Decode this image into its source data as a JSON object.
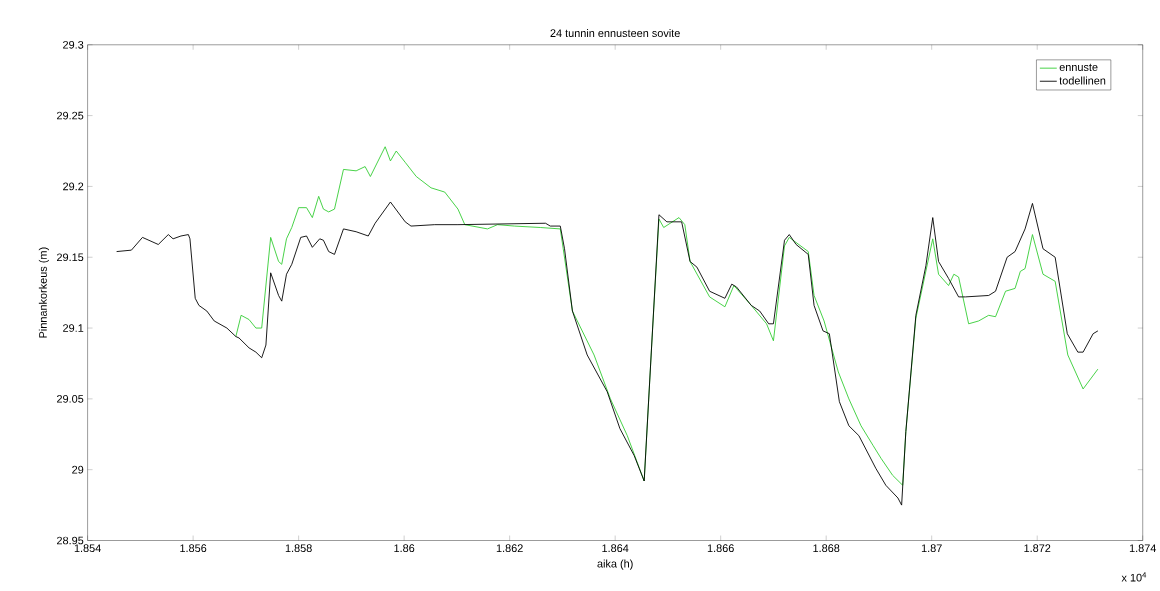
{
  "chart_data": {
    "type": "line",
    "title": "24 tunnin ennusteen sovite",
    "xlabel": "aika (h)",
    "ylabel": "Pinnankorkeus (m)",
    "xlim": [
      1.854,
      1.874
    ],
    "ylim": [
      28.95,
      29.3
    ],
    "xticks": [
      1.854,
      1.856,
      1.858,
      1.86,
      1.862,
      1.864,
      1.866,
      1.868,
      1.87,
      1.872,
      1.874
    ],
    "yticks": [
      28.95,
      29,
      29.05,
      29.1,
      29.15,
      29.2,
      29.25,
      29.3
    ],
    "legend": "top right",
    "annotations": [
      "x 10$^{4}$"
    ],
    "series": [
      {
        "name": "ennuste",
        "color": "#33cc33",
        "x": [
          1.85681,
          1.85691,
          1.85706,
          1.85719,
          1.8573,
          1.85747,
          1.85762,
          1.85768,
          1.85777,
          1.85787,
          1.858,
          1.85815,
          1.85826,
          1.85838,
          1.85847,
          1.85857,
          1.85868,
          1.85885,
          1.85909,
          1.85926,
          1.85936,
          1.85964,
          1.85974,
          1.85985,
          1.86002,
          1.86023,
          1.86051,
          1.86077,
          1.86102,
          1.86115,
          1.86158,
          1.86177,
          1.86209,
          1.86258,
          1.86296,
          1.86319,
          1.8636,
          1.86391,
          1.86423,
          1.86455,
          1.8647,
          1.86483,
          1.86492,
          1.86521,
          1.86532,
          1.86542,
          1.86579,
          1.86608,
          1.86625,
          1.86658,
          1.86687,
          1.867,
          1.86721,
          1.8673,
          1.86766,
          1.86777,
          1.86796,
          1.86823,
          1.86843,
          1.86866,
          1.86889,
          1.86904,
          1.86926,
          1.86945,
          1.86951,
          1.8697,
          1.87002,
          1.87013,
          1.87032,
          1.87042,
          1.87051,
          1.8707,
          1.87089,
          1.87108,
          1.87121,
          1.8714,
          1.87158,
          1.87168,
          1.87177,
          1.87191,
          1.87211,
          1.87234,
          1.87258,
          1.87287,
          1.87315
        ],
        "values": [
          29.094,
          29.109,
          29.106,
          29.1,
          29.1,
          29.164,
          29.147,
          29.145,
          29.163,
          29.171,
          29.185,
          29.185,
          29.178,
          29.193,
          29.184,
          29.182,
          29.184,
          29.212,
          29.211,
          29.214,
          29.207,
          29.228,
          29.218,
          29.225,
          29.217,
          29.207,
          29.199,
          29.196,
          29.184,
          29.173,
          29.17,
          29.173,
          29.172,
          29.171,
          29.17,
          29.112,
          29.081,
          29.05,
          29.024,
          28.992,
          29.093,
          29.177,
          29.171,
          29.178,
          29.173,
          29.147,
          29.122,
          29.115,
          29.13,
          29.116,
          29.103,
          29.091,
          29.158,
          29.164,
          29.154,
          29.123,
          29.105,
          29.069,
          29.05,
          29.031,
          29.017,
          29.008,
          28.996,
          28.989,
          29.027,
          29.107,
          29.163,
          29.138,
          29.13,
          29.138,
          29.136,
          29.103,
          29.105,
          29.109,
          29.108,
          29.126,
          29.128,
          29.14,
          29.142,
          29.166,
          29.138,
          29.133,
          29.081,
          29.057,
          29.071
        ]
      },
      {
        "name": "todellinen",
        "color": "#000000",
        "x": [
          1.85455,
          1.85483,
          1.85504,
          1.85534,
          1.85553,
          1.85562,
          1.85577,
          1.85591,
          1.85594,
          1.85604,
          1.85611,
          1.85626,
          1.8564,
          1.85664,
          1.85681,
          1.85687,
          1.85706,
          1.85719,
          1.8573,
          1.85738,
          1.85747,
          1.85762,
          1.85768,
          1.85777,
          1.85787,
          1.85804,
          1.85815,
          1.85826,
          1.8584,
          1.85847,
          1.85857,
          1.85868,
          1.85885,
          1.85909,
          1.85932,
          1.85945,
          1.85974,
          1.86002,
          1.86013,
          1.86058,
          1.86102,
          1.86268,
          1.86277,
          1.86296,
          1.86304,
          1.86319,
          1.86347,
          1.86385,
          1.86409,
          1.86436,
          1.86455,
          1.8647,
          1.86483,
          1.86498,
          1.86526,
          1.86542,
          1.86555,
          1.86579,
          1.86608,
          1.86621,
          1.8663,
          1.86658,
          1.86674,
          1.86691,
          1.867,
          1.86721,
          1.8673,
          1.86743,
          1.86766,
          1.86777,
          1.86794,
          1.86806,
          1.86825,
          1.86843,
          1.86862,
          1.86894,
          1.86913,
          1.86936,
          1.86943,
          1.86951,
          1.8697,
          1.86989,
          1.87002,
          1.87013,
          1.87032,
          1.87051,
          1.87064,
          1.87108,
          1.87121,
          1.87143,
          1.87158,
          1.87177,
          1.87191,
          1.87211,
          1.87234,
          1.87257,
          1.87277,
          1.87287,
          1.87306,
          1.87315
        ],
        "values": [
          29.154,
          29.155,
          29.164,
          29.159,
          29.166,
          29.163,
          29.165,
          29.166,
          29.163,
          29.121,
          29.116,
          29.112,
          29.105,
          29.1,
          29.094,
          29.093,
          29.086,
          29.083,
          29.079,
          29.088,
          29.139,
          29.123,
          29.119,
          29.138,
          29.145,
          29.164,
          29.165,
          29.157,
          29.163,
          29.162,
          29.154,
          29.152,
          29.17,
          29.168,
          29.165,
          29.174,
          29.189,
          29.175,
          29.172,
          29.173,
          29.173,
          29.174,
          29.172,
          29.172,
          29.156,
          29.112,
          29.081,
          29.055,
          29.029,
          29.01,
          28.992,
          29.093,
          29.18,
          29.175,
          29.175,
          29.147,
          29.143,
          29.126,
          29.121,
          29.131,
          29.129,
          29.116,
          29.112,
          29.103,
          29.103,
          29.162,
          29.166,
          29.159,
          29.152,
          29.116,
          29.098,
          29.096,
          29.048,
          29.031,
          29.024,
          29.001,
          28.989,
          28.98,
          28.975,
          29.027,
          29.109,
          29.144,
          29.178,
          29.147,
          29.135,
          29.122,
          29.122,
          29.123,
          29.126,
          29.15,
          29.154,
          29.17,
          29.188,
          29.156,
          29.15,
          29.096,
          29.083,
          29.083,
          29.096,
          29.098
        ]
      }
    ]
  }
}
